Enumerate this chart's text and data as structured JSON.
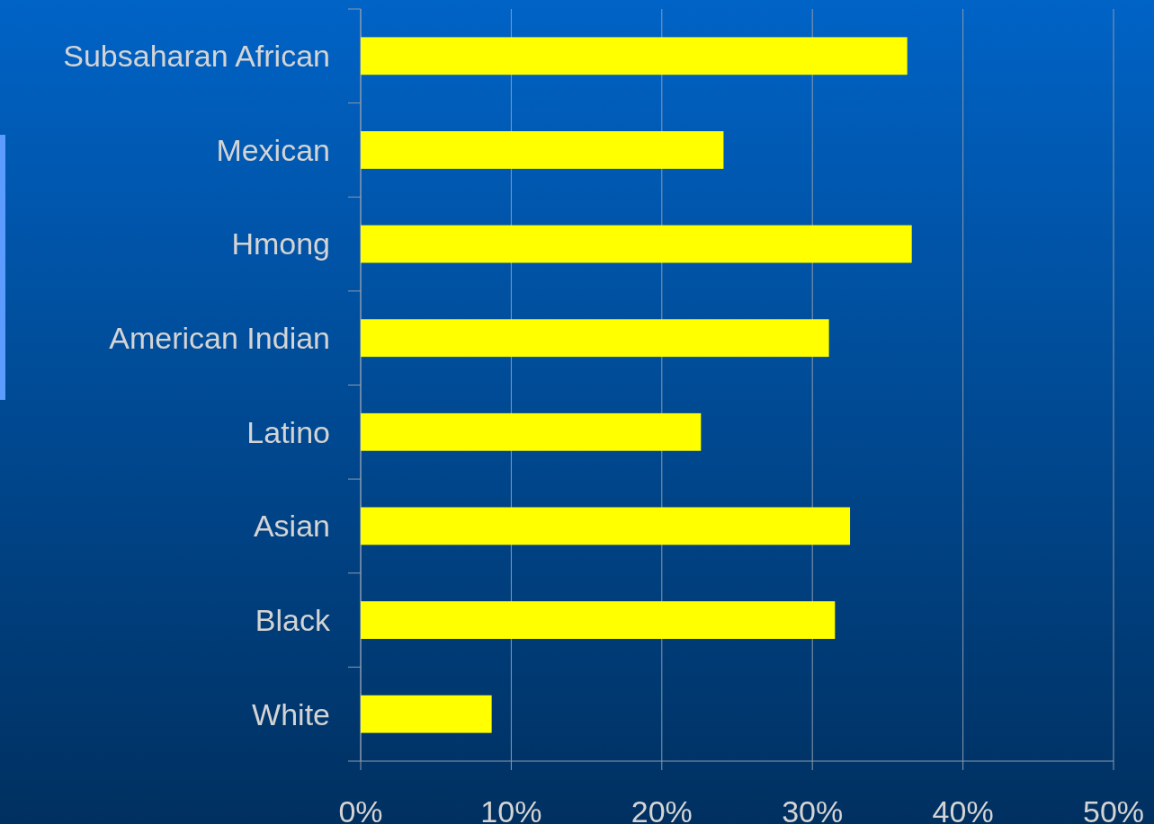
{
  "chart_data": {
    "type": "bar",
    "orientation": "horizontal",
    "categories": [
      "Subsaharan African",
      "Mexican",
      "Hmong",
      "American Indian",
      "Latino",
      "Asian",
      "Black",
      "White"
    ],
    "values": [
      36.3,
      24.1,
      36.6,
      31.1,
      22.6,
      32.5,
      31.5,
      8.7
    ],
    "color": "#ffff00",
    "xlim": [
      0,
      50
    ],
    "xticks": [
      {
        "value": 0,
        "label": "0%"
      },
      {
        "value": 10,
        "label": "10%"
      },
      {
        "value": 20,
        "label": "20%"
      },
      {
        "value": 30,
        "label": "30%"
      },
      {
        "value": 40,
        "label": "40%"
      },
      {
        "value": 50,
        "label": "50%"
      }
    ],
    "grid": "x"
  }
}
